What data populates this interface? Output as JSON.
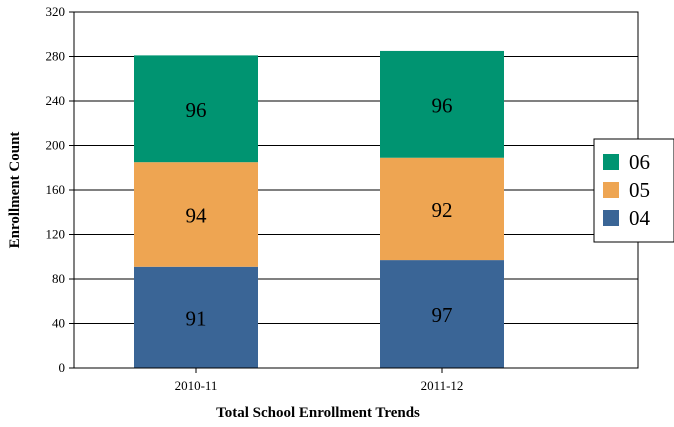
{
  "chart_data": {
    "type": "bar",
    "stacked": true,
    "categories": [
      "2010-11",
      "2011-12"
    ],
    "series": [
      {
        "name": "04",
        "color": "#3a6596",
        "values": [
          91,
          97
        ]
      },
      {
        "name": "05",
        "color": "#eea552",
        "values": [
          94,
          92
        ]
      },
      {
        "name": "06",
        "color": "#009471",
        "values": [
          96,
          96
        ]
      }
    ],
    "xlabel": "Total School Enrollment Trends",
    "ylabel": "Enrollment Count",
    "ylim": [
      0,
      320
    ],
    "yticks": [
      0,
      40,
      80,
      120,
      160,
      200,
      240,
      280,
      320
    ],
    "grid": true,
    "legend_position": "right"
  }
}
